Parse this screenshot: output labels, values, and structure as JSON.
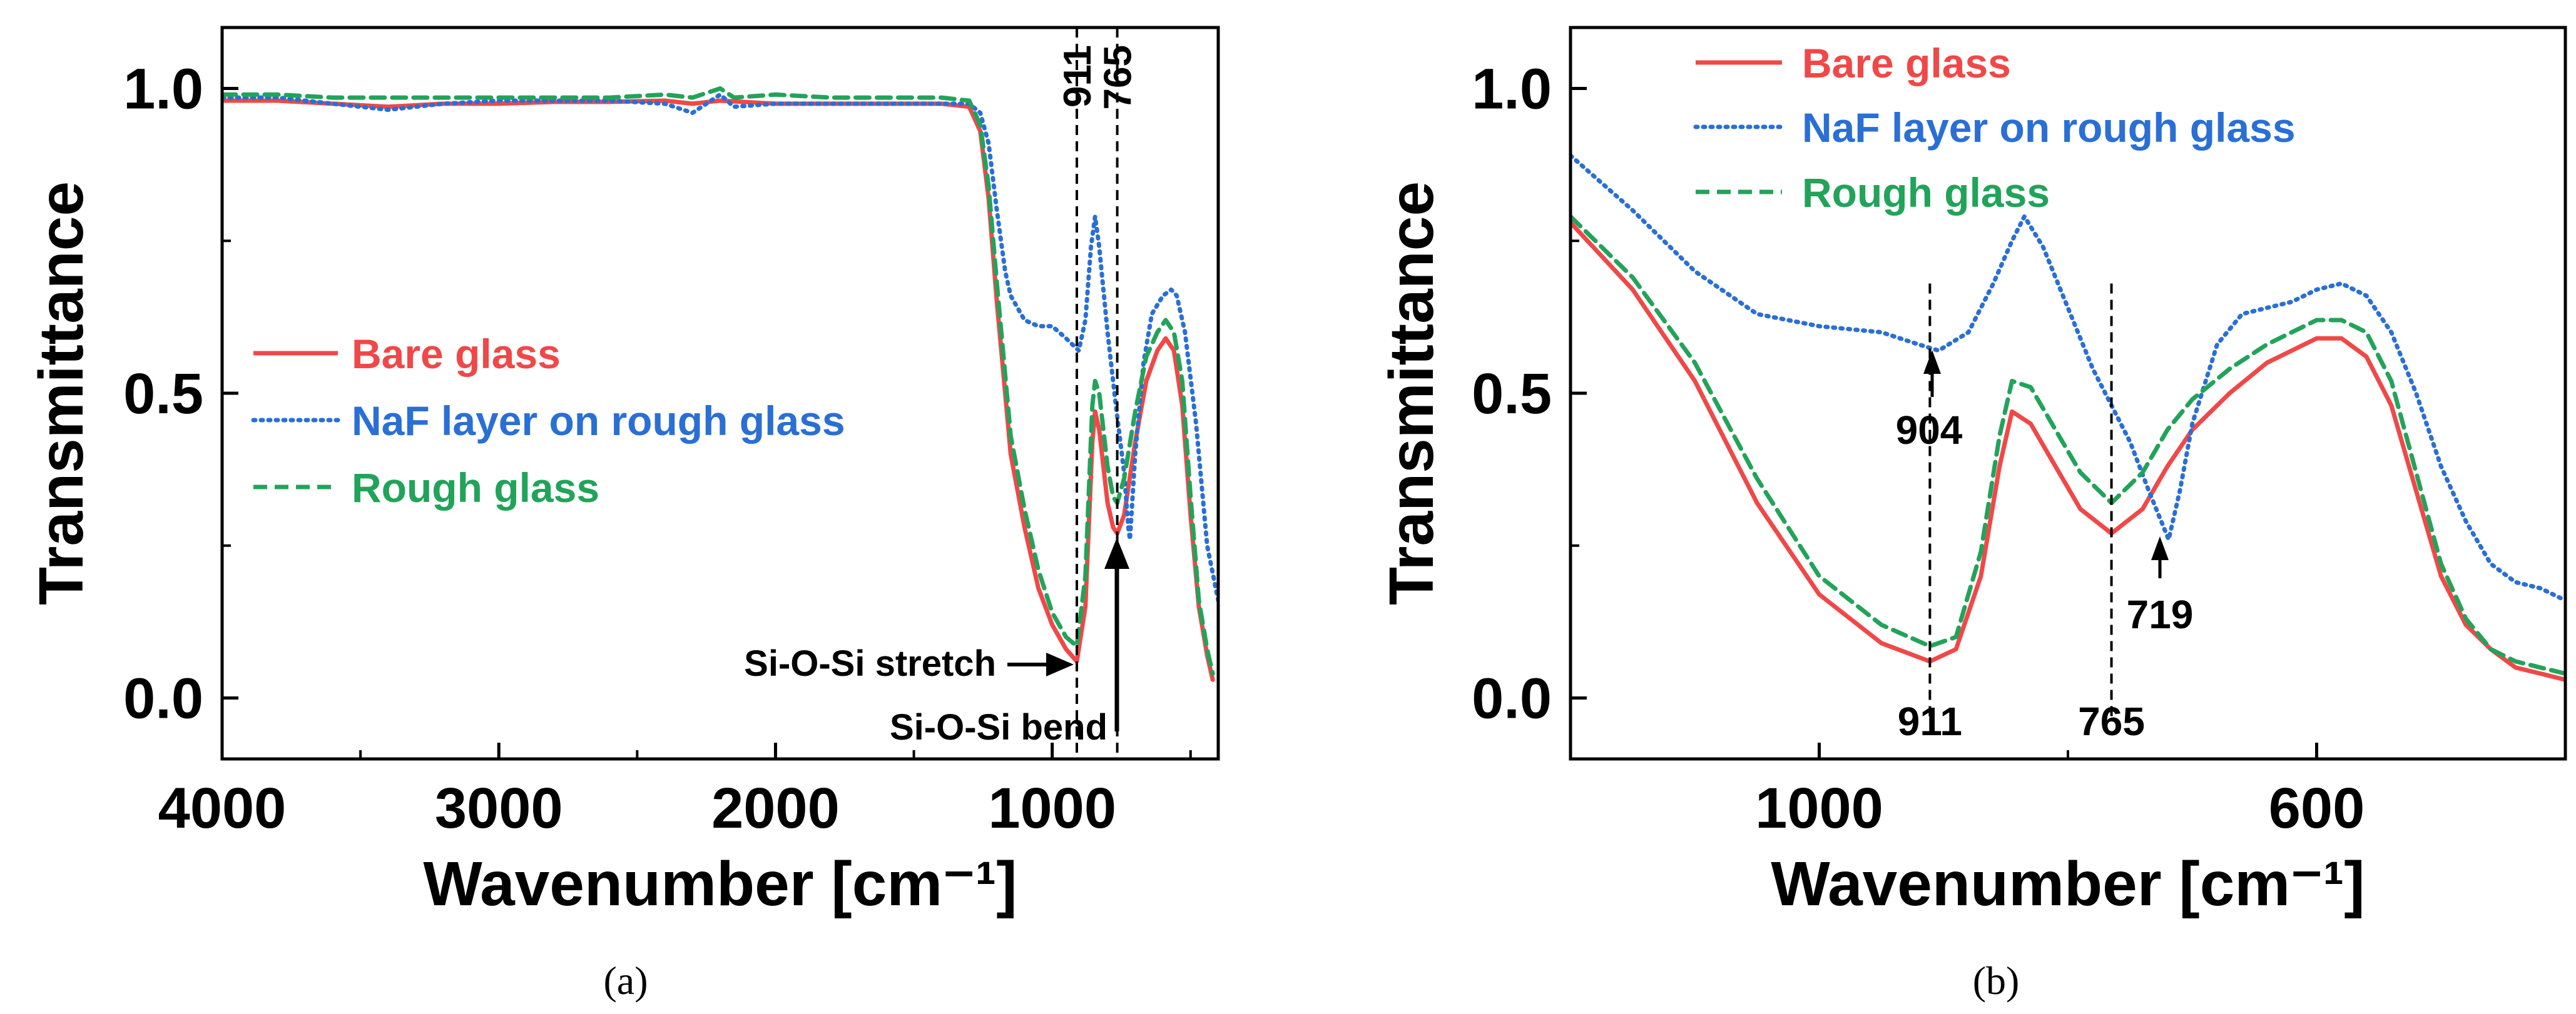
{
  "chart_data": [
    {
      "panel": "a",
      "type": "line",
      "caption": "(a)",
      "xlabel": "Wavenumber [cm⁻¹]",
      "ylabel": "Transmittance",
      "xlim": [
        4000,
        400
      ],
      "ylim": [
        -0.1,
        1.1
      ],
      "xticks": [
        4000,
        3000,
        2000,
        1000
      ],
      "xticklabels": [
        "4000",
        "3000",
        "2000",
        "1000"
      ],
      "yticks": [
        0.0,
        0.5,
        1.0
      ],
      "yticklabels": [
        "0.0",
        "0.5",
        "1.0"
      ],
      "legend_position": "center-left",
      "series": [
        {
          "name": "Bare glass",
          "color": "#f04848",
          "style": "solid",
          "points": [
            [
              4000,
              0.98
            ],
            [
              3800,
              0.98
            ],
            [
              3600,
              0.975
            ],
            [
              3400,
              0.97
            ],
            [
              3200,
              0.975
            ],
            [
              3000,
              0.975
            ],
            [
              2800,
              0.978
            ],
            [
              2600,
              0.978
            ],
            [
              2400,
              0.98
            ],
            [
              2300,
              0.975
            ],
            [
              2200,
              0.98
            ],
            [
              2000,
              0.975
            ],
            [
              1800,
              0.975
            ],
            [
              1600,
              0.975
            ],
            [
              1400,
              0.975
            ],
            [
              1300,
              0.97
            ],
            [
              1260,
              0.93
            ],
            [
              1230,
              0.82
            ],
            [
              1200,
              0.65
            ],
            [
              1170,
              0.5
            ],
            [
              1150,
              0.4
            ],
            [
              1100,
              0.28
            ],
            [
              1050,
              0.18
            ],
            [
              1000,
              0.12
            ],
            [
              950,
              0.08
            ],
            [
              911,
              0.06
            ],
            [
              880,
              0.15
            ],
            [
              855,
              0.42
            ],
            [
              845,
              0.47
            ],
            [
              830,
              0.44
            ],
            [
              800,
              0.32
            ],
            [
              780,
              0.28
            ],
            [
              765,
              0.27
            ],
            [
              740,
              0.3
            ],
            [
              700,
              0.42
            ],
            [
              660,
              0.52
            ],
            [
              620,
              0.57
            ],
            [
              590,
              0.59
            ],
            [
              560,
              0.57
            ],
            [
              530,
              0.48
            ],
            [
              500,
              0.3
            ],
            [
              470,
              0.15
            ],
            [
              440,
              0.07
            ],
            [
              420,
              0.03
            ]
          ]
        },
        {
          "name": "NaF layer on rough glass",
          "color": "#2a6fd4",
          "style": "dotted",
          "points": [
            [
              4000,
              0.985
            ],
            [
              3800,
              0.985
            ],
            [
              3600,
              0.975
            ],
            [
              3400,
              0.965
            ],
            [
              3200,
              0.975
            ],
            [
              3000,
              0.98
            ],
            [
              2800,
              0.98
            ],
            [
              2600,
              0.98
            ],
            [
              2400,
              0.975
            ],
            [
              2300,
              0.96
            ],
            [
              2200,
              0.99
            ],
            [
              2150,
              0.97
            ],
            [
              2000,
              0.975
            ],
            [
              1800,
              0.975
            ],
            [
              1600,
              0.975
            ],
            [
              1400,
              0.975
            ],
            [
              1300,
              0.975
            ],
            [
              1260,
              0.96
            ],
            [
              1230,
              0.91
            ],
            [
              1200,
              0.8
            ],
            [
              1170,
              0.7
            ],
            [
              1150,
              0.66
            ],
            [
              1100,
              0.62
            ],
            [
              1050,
              0.61
            ],
            [
              1000,
              0.61
            ],
            [
              950,
              0.59
            ],
            [
              904,
              0.57
            ],
            [
              880,
              0.62
            ],
            [
              860,
              0.74
            ],
            [
              845,
              0.79
            ],
            [
              830,
              0.74
            ],
            [
              800,
              0.6
            ],
            [
              770,
              0.48
            ],
            [
              740,
              0.37
            ],
            [
              725,
              0.28
            ],
            [
              719,
              0.26
            ],
            [
              700,
              0.4
            ],
            [
              670,
              0.55
            ],
            [
              640,
              0.63
            ],
            [
              600,
              0.66
            ],
            [
              570,
              0.67
            ],
            [
              550,
              0.66
            ],
            [
              520,
              0.6
            ],
            [
              480,
              0.45
            ],
            [
              440,
              0.25
            ],
            [
              400,
              0.16
            ]
          ]
        },
        {
          "name": "Rough glass",
          "color": "#22a35a",
          "style": "dashed",
          "points": [
            [
              4000,
              0.99
            ],
            [
              3800,
              0.99
            ],
            [
              3600,
              0.985
            ],
            [
              3400,
              0.985
            ],
            [
              3200,
              0.985
            ],
            [
              3000,
              0.985
            ],
            [
              2800,
              0.985
            ],
            [
              2600,
              0.985
            ],
            [
              2400,
              0.99
            ],
            [
              2300,
              0.985
            ],
            [
              2200,
              1.0
            ],
            [
              2150,
              0.985
            ],
            [
              2000,
              0.99
            ],
            [
              1800,
              0.985
            ],
            [
              1600,
              0.985
            ],
            [
              1400,
              0.985
            ],
            [
              1300,
              0.98
            ],
            [
              1260,
              0.94
            ],
            [
              1230,
              0.84
            ],
            [
              1200,
              0.68
            ],
            [
              1170,
              0.53
            ],
            [
              1150,
              0.43
            ],
            [
              1100,
              0.31
            ],
            [
              1050,
              0.21
            ],
            [
              1000,
              0.14
            ],
            [
              950,
              0.1
            ],
            [
              911,
              0.085
            ],
            [
              880,
              0.2
            ],
            [
              855,
              0.48
            ],
            [
              845,
              0.52
            ],
            [
              830,
              0.5
            ],
            [
              800,
              0.38
            ],
            [
              780,
              0.33
            ],
            [
              765,
              0.32
            ],
            [
              740,
              0.36
            ],
            [
              700,
              0.47
            ],
            [
              660,
              0.56
            ],
            [
              620,
              0.6
            ],
            [
              590,
              0.62
            ],
            [
              560,
              0.6
            ],
            [
              530,
              0.52
            ],
            [
              500,
              0.33
            ],
            [
              470,
              0.16
            ],
            [
              440,
              0.08
            ],
            [
              420,
              0.04
            ]
          ]
        }
      ],
      "vlines": [
        {
          "x": 911,
          "label": "911"
        },
        {
          "x": 765,
          "label": "765"
        }
      ],
      "annotations": [
        {
          "text": "Si-O-Si stretch",
          "target": [
            911,
            0.06
          ]
        },
        {
          "text": "Si-O-Si bend",
          "target": [
            765,
            0.27
          ]
        }
      ]
    },
    {
      "panel": "b",
      "type": "line",
      "caption": "(b)",
      "xlabel": "Wavenumber [cm⁻¹]",
      "ylabel": "Transmittance",
      "xlim": [
        1200,
        400
      ],
      "ylim": [
        -0.1,
        1.1
      ],
      "xticks": [
        1000,
        600
      ],
      "xticklabels": [
        "1000",
        "600"
      ],
      "yticks": [
        0.0,
        0.5,
        1.0
      ],
      "yticklabels": [
        "0.0",
        "0.5",
        "1.0"
      ],
      "legend_position": "top-left",
      "series": [
        {
          "name": "Bare glass",
          "color": "#f04848",
          "style": "solid",
          "points": [
            [
              1200,
              0.78
            ],
            [
              1150,
              0.67
            ],
            [
              1100,
              0.52
            ],
            [
              1050,
              0.32
            ],
            [
              1000,
              0.17
            ],
            [
              950,
              0.09
            ],
            [
              911,
              0.06
            ],
            [
              890,
              0.08
            ],
            [
              870,
              0.2
            ],
            [
              855,
              0.38
            ],
            [
              845,
              0.47
            ],
            [
              830,
              0.45
            ],
            [
              810,
              0.38
            ],
            [
              790,
              0.31
            ],
            [
              765,
              0.27
            ],
            [
              740,
              0.31
            ],
            [
              720,
              0.38
            ],
            [
              700,
              0.44
            ],
            [
              670,
              0.5
            ],
            [
              640,
              0.55
            ],
            [
              600,
              0.59
            ],
            [
              580,
              0.59
            ],
            [
              560,
              0.56
            ],
            [
              540,
              0.48
            ],
            [
              520,
              0.34
            ],
            [
              500,
              0.2
            ],
            [
              480,
              0.12
            ],
            [
              460,
              0.08
            ],
            [
              440,
              0.05
            ],
            [
              420,
              0.04
            ],
            [
              400,
              0.03
            ]
          ]
        },
        {
          "name": "NaF layer on rough glass",
          "color": "#2a6fd4",
          "style": "dotted",
          "points": [
            [
              1200,
              0.89
            ],
            [
              1150,
              0.8
            ],
            [
              1100,
              0.7
            ],
            [
              1050,
              0.63
            ],
            [
              1000,
              0.61
            ],
            [
              950,
              0.6
            ],
            [
              920,
              0.58
            ],
            [
              904,
              0.57
            ],
            [
              880,
              0.6
            ],
            [
              860,
              0.68
            ],
            [
              845,
              0.75
            ],
            [
              835,
              0.79
            ],
            [
              820,
              0.74
            ],
            [
              800,
              0.64
            ],
            [
              780,
              0.54
            ],
            [
              765,
              0.48
            ],
            [
              750,
              0.42
            ],
            [
              735,
              0.34
            ],
            [
              725,
              0.29
            ],
            [
              719,
              0.26
            ],
            [
              710,
              0.34
            ],
            [
              700,
              0.45
            ],
            [
              680,
              0.58
            ],
            [
              660,
              0.63
            ],
            [
              640,
              0.64
            ],
            [
              620,
              0.65
            ],
            [
              600,
              0.67
            ],
            [
              580,
              0.68
            ],
            [
              560,
              0.66
            ],
            [
              540,
              0.6
            ],
            [
              520,
              0.5
            ],
            [
              500,
              0.38
            ],
            [
              480,
              0.29
            ],
            [
              460,
              0.22
            ],
            [
              440,
              0.19
            ],
            [
              420,
              0.18
            ],
            [
              400,
              0.16
            ]
          ]
        },
        {
          "name": "Rough glass",
          "color": "#22a35a",
          "style": "dashed",
          "points": [
            [
              1200,
              0.79
            ],
            [
              1150,
              0.69
            ],
            [
              1100,
              0.55
            ],
            [
              1050,
              0.36
            ],
            [
              1000,
              0.2
            ],
            [
              950,
              0.12
            ],
            [
              911,
              0.085
            ],
            [
              890,
              0.1
            ],
            [
              870,
              0.24
            ],
            [
              855,
              0.43
            ],
            [
              845,
              0.52
            ],
            [
              830,
              0.51
            ],
            [
              810,
              0.44
            ],
            [
              790,
              0.37
            ],
            [
              765,
              0.32
            ],
            [
              740,
              0.37
            ],
            [
              720,
              0.44
            ],
            [
              700,
              0.49
            ],
            [
              670,
              0.54
            ],
            [
              640,
              0.58
            ],
            [
              600,
              0.62
            ],
            [
              580,
              0.62
            ],
            [
              560,
              0.6
            ],
            [
              540,
              0.52
            ],
            [
              520,
              0.37
            ],
            [
              500,
              0.22
            ],
            [
              480,
              0.13
            ],
            [
              460,
              0.08
            ],
            [
              440,
              0.06
            ],
            [
              420,
              0.05
            ],
            [
              400,
              0.04
            ]
          ]
        }
      ],
      "vlines": [
        {
          "x": 911,
          "label": "911"
        },
        {
          "x": 765,
          "label": "765"
        }
      ],
      "annotations": [
        {
          "text": "904",
          "target": [
            904,
            0.57
          ]
        },
        {
          "text": "719",
          "target": [
            719,
            0.26
          ]
        }
      ]
    }
  ]
}
